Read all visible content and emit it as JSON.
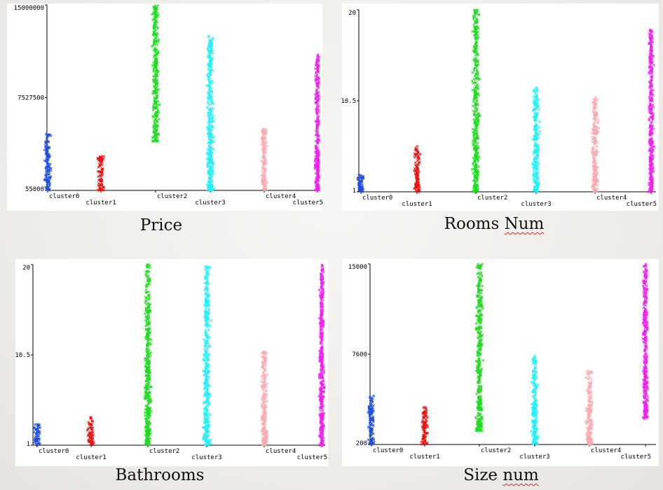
{
  "categories": [
    "cluster0",
    "cluster1",
    "cluster2",
    "cluster3",
    "cluster4",
    "cluster5"
  ],
  "colors": [
    "#1f4fe0",
    "#ee0c0c",
    "#1ddc1d",
    "#22f0f5",
    "#f7aab0",
    "#f01ff0"
  ],
  "charts": [
    {
      "caption_pre": "Price",
      "caption_squiggle": "",
      "caption_post": "",
      "y_min_label": "55000",
      "y_mid_label": "7527500",
      "y_max_label": "15000000"
    },
    {
      "caption_pre": "Rooms ",
      "caption_squiggle": "Num",
      "caption_post": "",
      "y_min_label": "1",
      "y_mid_label": "10.5",
      "y_max_label": "20"
    },
    {
      "caption_pre": "Bathrooms",
      "caption_squiggle": "",
      "caption_post": "",
      "y_min_label": "1",
      "y_mid_label": "10.5",
      "y_max_label": "20"
    },
    {
      "caption_pre": "Size ",
      "caption_squiggle": "num",
      "caption_post": "",
      "y_min_label": "200",
      "y_mid_label": "7600",
      "y_max_label": "15000"
    }
  ],
  "chart_data": [
    {
      "type": "scatter",
      "title": "Price",
      "categories": [
        "cluster0",
        "cluster1",
        "cluster2",
        "cluster3",
        "cluster4",
        "cluster5"
      ],
      "ylim": [
        55000,
        15000000
      ],
      "yticks": [
        55000,
        7527500,
        15000000
      ],
      "series": [
        {
          "category": "cluster0",
          "y_min": 55000,
          "y_max": 4600000
        },
        {
          "category": "cluster1",
          "y_min": 55000,
          "y_max": 2900000
        },
        {
          "category": "cluster2",
          "y_min": 4000000,
          "y_max": 15000000
        },
        {
          "category": "cluster3",
          "y_min": 55000,
          "y_max": 12500000
        },
        {
          "category": "cluster4",
          "y_min": 55000,
          "y_max": 5000000
        },
        {
          "category": "cluster5",
          "y_min": 55000,
          "y_max": 11000000
        }
      ]
    },
    {
      "type": "scatter",
      "title": "Rooms Num",
      "categories": [
        "cluster0",
        "cluster1",
        "cluster2",
        "cluster3",
        "cluster4",
        "cluster5"
      ],
      "ylim": [
        1,
        20
      ],
      "yticks": [
        1,
        10.5,
        20
      ],
      "series": [
        {
          "category": "cluster0",
          "y_min": 1,
          "y_max": 2.8
        },
        {
          "category": "cluster1",
          "y_min": 1,
          "y_max": 5.8
        },
        {
          "category": "cluster2",
          "y_min": 1,
          "y_max": 20
        },
        {
          "category": "cluster3",
          "y_min": 1,
          "y_max": 12
        },
        {
          "category": "cluster4",
          "y_min": 1,
          "y_max": 11
        },
        {
          "category": "cluster5",
          "y_min": 1,
          "y_max": 18
        }
      ]
    },
    {
      "type": "scatter",
      "title": "Bathrooms",
      "categories": [
        "cluster0",
        "cluster1",
        "cluster2",
        "cluster3",
        "cluster4",
        "cluster5"
      ],
      "ylim": [
        1,
        20
      ],
      "yticks": [
        1,
        10.5,
        20
      ],
      "series": [
        {
          "category": "cluster0",
          "y_min": 1,
          "y_max": 3.2
        },
        {
          "category": "cluster1",
          "y_min": 1,
          "y_max": 4
        },
        {
          "category": "cluster2",
          "y_min": 1,
          "y_max": 20
        },
        {
          "category": "cluster3",
          "y_min": 1,
          "y_max": 20
        },
        {
          "category": "cluster4",
          "y_min": 1,
          "y_max": 11
        },
        {
          "category": "cluster5",
          "y_min": 1,
          "y_max": 20
        }
      ]
    },
    {
      "type": "scatter",
      "title": "Size num",
      "categories": [
        "cluster0",
        "cluster1",
        "cluster2",
        "cluster3",
        "cluster4",
        "cluster5"
      ],
      "ylim": [
        200,
        15000
      ],
      "yticks": [
        200,
        7600,
        15000
      ],
      "series": [
        {
          "category": "cluster0",
          "y_min": 200,
          "y_max": 4200
        },
        {
          "category": "cluster1",
          "y_min": 200,
          "y_max": 3300
        },
        {
          "category": "cluster2",
          "y_min": 1300,
          "y_max": 15000
        },
        {
          "category": "cluster3",
          "y_min": 200,
          "y_max": 7400
        },
        {
          "category": "cluster4",
          "y_min": 200,
          "y_max": 6300
        },
        {
          "category": "cluster5",
          "y_min": 2300,
          "y_max": 15000
        }
      ]
    }
  ]
}
